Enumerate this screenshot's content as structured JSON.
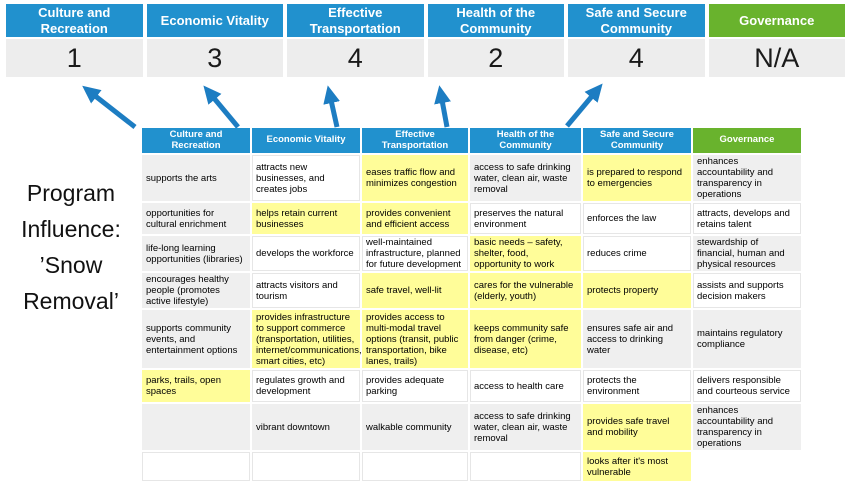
{
  "program_label": "Program Influence: ’Snow Removal’",
  "colors": {
    "header_blue": "#2191CE",
    "header_green": "#69B32D",
    "highlight_yellow": "#FFFD99",
    "cell_grey": "#EFEFEF",
    "score_bg": "#EDEDED",
    "arrow_blue": "#1D7DC2"
  },
  "scoreboard": {
    "columns": [
      {
        "label": "Culture and Recreation",
        "score": "1",
        "style": "blue"
      },
      {
        "label": "Economic Vitality",
        "score": "3",
        "style": "blue"
      },
      {
        "label": "Effective Transportation",
        "score": "4",
        "style": "blue"
      },
      {
        "label": "Health of the Community",
        "score": "2",
        "style": "blue"
      },
      {
        "label": "Safe and Secure Community",
        "score": "4",
        "style": "blue"
      },
      {
        "label": "Governance",
        "score": "N/A",
        "style": "green"
      }
    ]
  },
  "matrix": {
    "headers": [
      {
        "label": "Culture and Recreation",
        "style": "blue"
      },
      {
        "label": "Economic Vitality",
        "style": "blue"
      },
      {
        "label": "Effective Transportation",
        "style": "blue"
      },
      {
        "label": "Health of the Community",
        "style": "blue"
      },
      {
        "label": "Safe and Secure Community",
        "style": "blue"
      },
      {
        "label": "Governance",
        "style": "green"
      }
    ],
    "rows": [
      {
        "cells": [
          {
            "text": "supports the arts",
            "bg": "grey"
          },
          {
            "text": "attracts new businesses, and creates jobs",
            "bg": "white"
          },
          {
            "text": "eases traffic flow and minimizes congestion",
            "bg": "yellow"
          },
          {
            "text": "access to safe drinking water, clean air, waste removal",
            "bg": "grey"
          },
          {
            "text": "is prepared to respond to emergencies",
            "bg": "yellow"
          },
          {
            "text": "enhances accountability and transparency in operations",
            "bg": "grey"
          }
        ]
      },
      {
        "cells": [
          {
            "text": "opportunities for cultural enrichment",
            "bg": "grey"
          },
          {
            "text": "helps retain current businesses",
            "bg": "yellow"
          },
          {
            "text": "provides convenient and efficient access",
            "bg": "yellow"
          },
          {
            "text": "preserves the natural environment",
            "bg": "white"
          },
          {
            "text": "enforces the law",
            "bg": "white"
          },
          {
            "text": "attracts, develops and retains talent",
            "bg": "white"
          }
        ]
      },
      {
        "cells": [
          {
            "text": "life-long learning opportunities (libraries)",
            "bg": "grey"
          },
          {
            "text": "develops the workforce",
            "bg": "white"
          },
          {
            "text": "well-maintained infrastructure, planned for future development",
            "bg": "white"
          },
          {
            "text": "basic needs – safety, shelter, food, opportunity to work",
            "bg": "yellow"
          },
          {
            "text": "reduces crime",
            "bg": "white"
          },
          {
            "text": "stewardship of financial, human and physical resources",
            "bg": "grey"
          }
        ]
      },
      {
        "cells": [
          {
            "text": "encourages healthy people (promotes active lifestyle)",
            "bg": "grey"
          },
          {
            "text": "attracts visitors and tourism",
            "bg": "white"
          },
          {
            "text": "safe travel, well-lit",
            "bg": "yellow"
          },
          {
            "text": "cares for the vulnerable (elderly, youth)",
            "bg": "yellow"
          },
          {
            "text": "protects property",
            "bg": "yellow"
          },
          {
            "text": "assists and supports decision makers",
            "bg": "white"
          }
        ]
      },
      {
        "cells": [
          {
            "text": "supports community events, and entertainment options",
            "bg": "grey"
          },
          {
            "text": "provides infrastructure to support commerce (transportation, utilities, internet/communications, smart cities, etc)",
            "bg": "yellow"
          },
          {
            "text": "provides access to multi-modal travel options (transit, public transportation, bike lanes, trails)",
            "bg": "yellow"
          },
          {
            "text": "keeps community safe from danger (crime, disease, etc)",
            "bg": "yellow"
          },
          {
            "text": "ensures safe air and access to drinking water",
            "bg": "grey"
          },
          {
            "text": "maintains regulatory compliance",
            "bg": "grey"
          }
        ]
      },
      {
        "cells": [
          {
            "text": "parks, trails, open spaces",
            "bg": "yellow"
          },
          {
            "text": "regulates growth and development",
            "bg": "white"
          },
          {
            "text": "provides adequate parking",
            "bg": "white"
          },
          {
            "text": "access to health care",
            "bg": "white"
          },
          {
            "text": "protects the environment",
            "bg": "white"
          },
          {
            "text": "delivers responsible and courteous service",
            "bg": "white"
          }
        ]
      },
      {
        "cells": [
          {
            "text": "",
            "bg": "grey"
          },
          {
            "text": "vibrant downtown",
            "bg": "grey"
          },
          {
            "text": "walkable community",
            "bg": "grey"
          },
          {
            "text": "access to safe drinking water, clean air, waste removal",
            "bg": "grey"
          },
          {
            "text": "provides safe travel and mobility",
            "bg": "yellow"
          },
          {
            "text": "enhances accountability and transparency in operations",
            "bg": "grey"
          }
        ]
      },
      {
        "cells": [
          {
            "text": "",
            "bg": "white"
          },
          {
            "text": "",
            "bg": "white"
          },
          {
            "text": "",
            "bg": "white"
          },
          {
            "text": "",
            "bg": "white"
          },
          {
            "text": "looks after it's most vulnerable",
            "bg": "yellow"
          },
          {
            "text": "",
            "bg": "none"
          }
        ]
      }
    ]
  }
}
